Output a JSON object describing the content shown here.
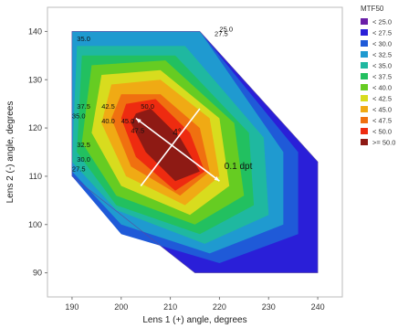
{
  "chart_data": {
    "type": "contour",
    "title": "",
    "xlabel": "Lens 1 (+) angle, degrees",
    "ylabel": "Lens 2 (-) angle, degrees",
    "xlim": [
      185,
      245
    ],
    "ylim": [
      85,
      145
    ],
    "xticks": [
      190,
      200,
      210,
      220,
      230,
      240
    ],
    "yticks": [
      90,
      100,
      110,
      120,
      130,
      140
    ],
    "grid": false,
    "legend": {
      "title": "MTF50",
      "placement": "right",
      "entries": [
        {
          "label": "< 25.0",
          "color": "#6a1fa8"
        },
        {
          "label": "< 27.5",
          "color": "#2a1fd8"
        },
        {
          "label": "< 30.0",
          "color": "#1f5ad8"
        },
        {
          "label": "< 32.5",
          "color": "#1f9ad0"
        },
        {
          "label": "< 35.0",
          "color": "#1fb8a0"
        },
        {
          "label": "< 37.5",
          "color": "#22c060"
        },
        {
          "label": "< 40.0",
          "color": "#66cc22"
        },
        {
          "label": "< 42.5",
          "color": "#d8dc1e"
        },
        {
          "label": "< 45.0",
          "color": "#f0aa14"
        },
        {
          "label": "< 47.5",
          "color": "#f07010"
        },
        {
          "label": "< 50.0",
          "color": "#ee2b10"
        },
        {
          "label": ">= 50.0",
          "color": "#8e1a14"
        }
      ]
    },
    "domain_polygon": [
      [
        190,
        140
      ],
      [
        216,
        140
      ],
      [
        240,
        113
      ],
      [
        240,
        90
      ],
      [
        215,
        90
      ],
      [
        190,
        110
      ]
    ],
    "levels": [
      {
        "level": 2,
        "polygon": [
          [
            190,
            140
          ],
          [
            216,
            140
          ],
          [
            236,
            115
          ],
          [
            236,
            98
          ],
          [
            220,
            92
          ],
          [
            200,
            98
          ],
          [
            190,
            110
          ]
        ]
      },
      {
        "level": 3,
        "polygon": [
          [
            190,
            140
          ],
          [
            216,
            140
          ],
          [
            233,
            115
          ],
          [
            233,
            100
          ],
          [
            218,
            94
          ],
          [
            200,
            100
          ],
          [
            190,
            111
          ]
        ]
      },
      {
        "level": 4,
        "polygon": [
          [
            191,
            137
          ],
          [
            213,
            137
          ],
          [
            229,
            118
          ],
          [
            230,
            102
          ],
          [
            217,
            96
          ],
          [
            199,
            103
          ],
          [
            190,
            113
          ]
        ]
      },
      {
        "level": 5,
        "polygon": [
          [
            192,
            135
          ],
          [
            211,
            135
          ],
          [
            226,
            119
          ],
          [
            227,
            104
          ],
          [
            216,
            98
          ],
          [
            199,
            104
          ],
          [
            191,
            115
          ]
        ]
      },
      {
        "level": 6,
        "polygon": [
          [
            194,
            133
          ],
          [
            209,
            134
          ],
          [
            223,
            121
          ],
          [
            225,
            106
          ],
          [
            215,
            100
          ],
          [
            199,
            106
          ],
          [
            192,
            117
          ]
        ]
      },
      {
        "level": 7,
        "polygon": [
          [
            196,
            131
          ],
          [
            208,
            132
          ],
          [
            220,
            122
          ],
          [
            222,
            108
          ],
          [
            214,
            102
          ],
          [
            200,
            108
          ],
          [
            194,
            119
          ]
        ]
      },
      {
        "level": 8,
        "polygon": [
          [
            198,
            129
          ],
          [
            208,
            130
          ],
          [
            218,
            122
          ],
          [
            220,
            110
          ],
          [
            213,
            104
          ],
          [
            201,
            110
          ],
          [
            196,
            121
          ]
        ]
      },
      {
        "level": 9,
        "polygon": [
          [
            200,
            127
          ],
          [
            208,
            127
          ],
          [
            216,
            120
          ],
          [
            218,
            111
          ],
          [
            212,
            106
          ],
          [
            202,
            112
          ],
          [
            198,
            122
          ]
        ]
      },
      {
        "level": 10,
        "polygon": [
          [
            201,
            125
          ],
          [
            207,
            126
          ],
          [
            214,
            119
          ],
          [
            217,
            111
          ],
          [
            211,
            107
          ],
          [
            203,
            114
          ],
          [
            200,
            122
          ]
        ]
      },
      {
        "level": 11,
        "polygon": [
          [
            203,
            123
          ],
          [
            206,
            124
          ],
          [
            212,
            118
          ],
          [
            216,
            111
          ],
          [
            211,
            109
          ],
          [
            205,
            115
          ],
          [
            202,
            121
          ]
        ]
      }
    ],
    "contour_labels": [
      {
        "text": "35.0",
        "x": 191,
        "y": 138
      },
      {
        "text": "25.0",
        "x": 220,
        "y": 140
      },
      {
        "text": "27.5",
        "x": 219,
        "y": 139
      },
      {
        "text": "37.5",
        "x": 191,
        "y": 124
      },
      {
        "text": "35.0",
        "x": 190,
        "y": 122
      },
      {
        "text": "42.5",
        "x": 196,
        "y": 124
      },
      {
        "text": "40.0",
        "x": 196,
        "y": 121
      },
      {
        "text": "45.0",
        "x": 200,
        "y": 121
      },
      {
        "text": "50.0",
        "x": 204,
        "y": 124
      },
      {
        "text": "47.5",
        "x": 202,
        "y": 119
      },
      {
        "text": "32.5",
        "x": 191,
        "y": 116
      },
      {
        "text": "30.0",
        "x": 191,
        "y": 113
      },
      {
        "text": "27.5",
        "x": 190,
        "y": 111
      },
      {
        "text": "4°",
        "x": 212,
        "y": 120
      }
    ],
    "annotations": [
      {
        "text": "0.1 dpt",
        "x": 221,
        "y": 111.5
      },
      {
        "text": "4°",
        "x": 210.5,
        "y": 118.5
      }
    ],
    "arrow_lines": [
      {
        "from": [
          203,
          122
        ],
        "to": [
          220,
          109
        ]
      },
      {
        "from": [
          204,
          108
        ],
        "to": [
          216,
          124
        ]
      }
    ]
  }
}
